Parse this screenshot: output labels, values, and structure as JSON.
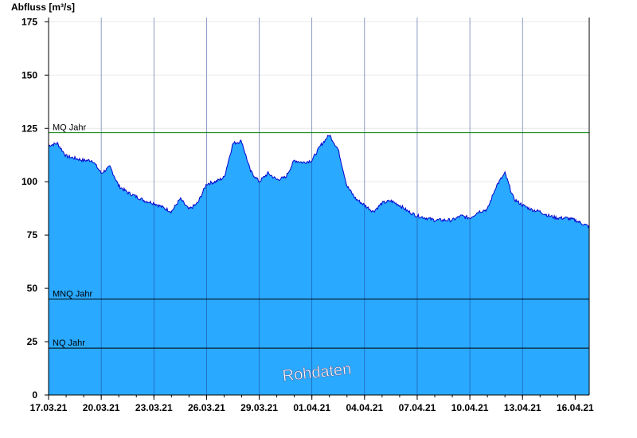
{
  "chart_data": {
    "type": "area",
    "ylabel": "Abfluss [m³/s]",
    "ylim": [
      0,
      177
    ],
    "yticks": [
      "0",
      "25",
      "50",
      "75",
      "100",
      "125",
      "150",
      "175"
    ],
    "x_tick_labels": [
      "17.03.21",
      "20.03.21",
      "23.03.21",
      "26.03.21",
      "29.03.21",
      "01.04.21",
      "04.04.21",
      "07.04.21",
      "10.04.21",
      "13.04.21",
      "16.04.21"
    ],
    "xlim_days": [
      0,
      30.8
    ],
    "grid": true,
    "fill_color": "#29a9ff",
    "line_color": "#0000cc",
    "series": {
      "x_days": [
        0,
        0.5,
        1,
        1.5,
        2,
        2.5,
        3,
        3.5,
        4,
        4.5,
        5,
        5.5,
        6,
        6.5,
        7,
        7.5,
        8,
        8.5,
        9,
        9.5,
        10,
        10.5,
        11,
        11.5,
        12,
        12.5,
        13,
        13.5,
        14,
        14.5,
        15,
        15.5,
        16,
        16.5,
        17,
        17.5,
        18,
        18.5,
        19,
        19.5,
        20,
        20.5,
        21,
        21.5,
        22,
        22.5,
        23,
        23.5,
        24,
        24.5,
        25,
        25.5,
        26,
        26.5,
        27,
        27.5,
        28,
        28.5,
        29,
        29.5,
        30,
        30.5,
        30.8
      ],
      "values": [
        117,
        118,
        112,
        111,
        110,
        110,
        104,
        107,
        98,
        95,
        93,
        91,
        90,
        88,
        86,
        92,
        87,
        90,
        99,
        100,
        102,
        118,
        119,
        105,
        100,
        104,
        101,
        102,
        110,
        109,
        110,
        117,
        122,
        115,
        98,
        92,
        89,
        86,
        90,
        91,
        89,
        86,
        84,
        83,
        82,
        82,
        82,
        84,
        83,
        86,
        87,
        98,
        104,
        92,
        89,
        87,
        86,
        84,
        83,
        83,
        82,
        80,
        79
      ]
    },
    "reference_lines": [
      {
        "label": "MQ Jahr",
        "value": 123,
        "color": "#008000"
      },
      {
        "label": "MNQ Jahr",
        "value": 45,
        "color": "#000000"
      },
      {
        "label": "NQ Jahr",
        "value": 22,
        "color": "#000000"
      }
    ],
    "watermark": "Rohdaten"
  }
}
